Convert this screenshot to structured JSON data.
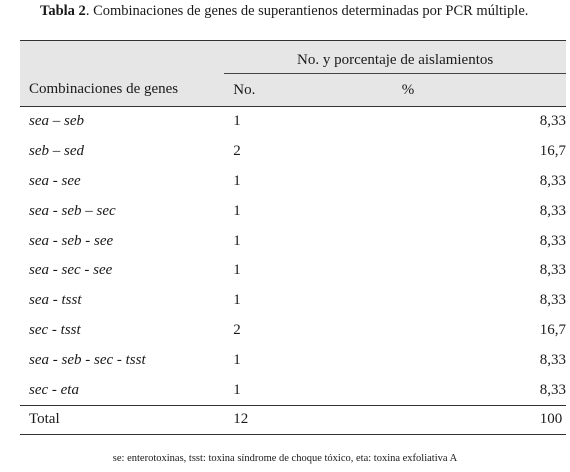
{
  "caption": {
    "label": "Tabla 2",
    "text": ". Combinaciones de genes de superantienos determinadas por PCR múltiple."
  },
  "table": {
    "group_header": "No. y porcentaje de aislamientos",
    "columns": [
      "Combinaciones de genes",
      "No.",
      "%"
    ],
    "rows": [
      {
        "genes": "sea – seb",
        "no": "1",
        "pct": "8,33"
      },
      {
        "genes": "seb – sed",
        "no": "2",
        "pct": "16,7"
      },
      {
        "genes": "sea - see",
        "no": "1",
        "pct": "8,33"
      },
      {
        "genes": "sea - seb – sec",
        "no": "1",
        "pct": "8,33"
      },
      {
        "genes": "sea - seb - see",
        "no": "1",
        "pct": "8,33"
      },
      {
        "genes": "sea - sec - see",
        "no": "1",
        "pct": "8,33"
      },
      {
        "genes": "sea - tsst",
        "no": "1",
        "pct": "8,33"
      },
      {
        "genes": "sec - tsst",
        "no": "2",
        "pct": "16,7"
      },
      {
        "genes": "sea - seb - sec - tsst",
        "no": "1",
        "pct": "8,33"
      },
      {
        "genes": "sec - eta",
        "no": "1",
        "pct": "8,33"
      }
    ],
    "total": {
      "label": "Total",
      "no": "12",
      "pct": "100"
    }
  },
  "footnote": "se: enterotoxinas, tsst: toxina síndrome de choque tóxico, eta: toxina exfoliativa A"
}
